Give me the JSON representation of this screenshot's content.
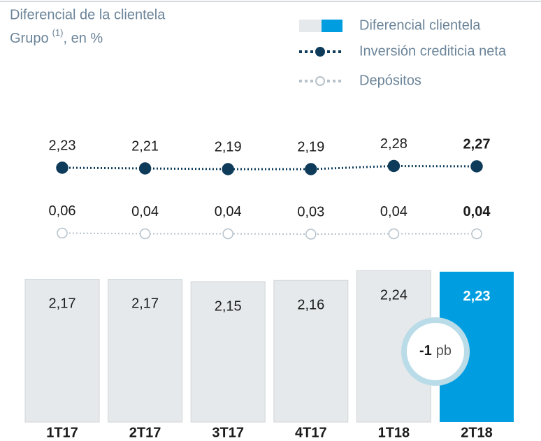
{
  "chart_data": {
    "type": "bar",
    "title": "Diferencial de la clientela",
    "subtitle": {
      "text": "Grupo",
      "superscript": "(1)",
      "suffix": ", en %"
    },
    "categories": [
      "1T17",
      "2T17",
      "3T17",
      "4T17",
      "1T18",
      "2T18"
    ],
    "series": [
      {
        "name": "Diferencial clientela",
        "type": "bar",
        "color": "#e6e9ec",
        "highlight_color": "#009ee0",
        "values": [
          2.17,
          2.17,
          2.15,
          2.16,
          2.24,
          2.23
        ],
        "value_labels": [
          "2,17",
          "2,17",
          "2,15",
          "2,16",
          "2,24",
          "2,23"
        ]
      },
      {
        "name": "Inversión crediticia neta",
        "type": "line",
        "color": "#0e3b5a",
        "marker": "filled",
        "values": [
          2.23,
          2.21,
          2.19,
          2.19,
          2.28,
          2.27
        ],
        "value_labels": [
          "2,23",
          "2,21",
          "2,19",
          "2,19",
          "2,28",
          "2,27"
        ]
      },
      {
        "name": "Depósitos",
        "type": "line",
        "color": "#b5c2cb",
        "marker": "hollow",
        "values": [
          0.06,
          0.04,
          0.04,
          0.03,
          0.04,
          0.04
        ],
        "value_labels": [
          "0,06",
          "0,04",
          "0,04",
          "0,03",
          "0,04",
          "0,04"
        ]
      }
    ],
    "annotation": {
      "value": -1,
      "unit": "pb"
    }
  }
}
